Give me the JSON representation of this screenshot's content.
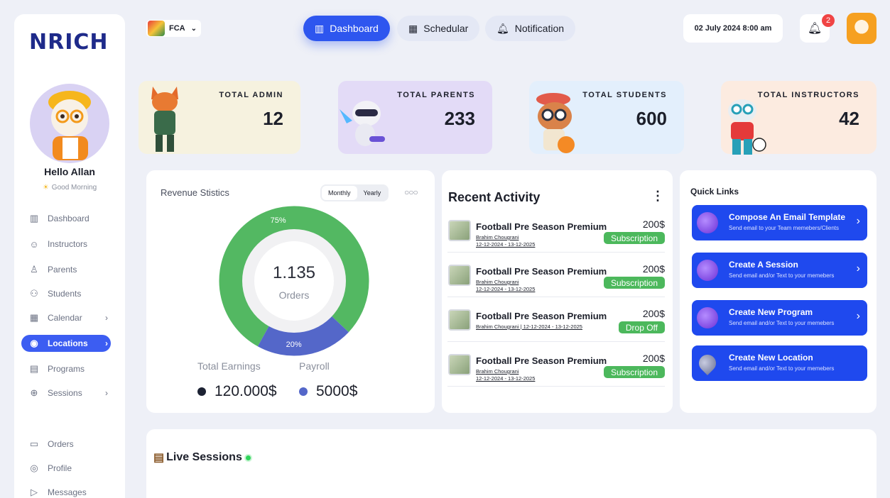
{
  "brand": "NRICH",
  "user": {
    "greeting": "Hello Allan",
    "subtitle": "Good Morning"
  },
  "sidebar": {
    "items": [
      {
        "label": "Dashboard",
        "icon": "chart-icon"
      },
      {
        "label": "Instructors",
        "icon": "user-plus-icon"
      },
      {
        "label": "Parents",
        "icon": "user-icon"
      },
      {
        "label": "Students",
        "icon": "users-icon"
      },
      {
        "label": "Calendar",
        "icon": "calendar-icon"
      },
      {
        "label": "Locations",
        "icon": "location-icon"
      },
      {
        "label": "Programs",
        "icon": "document-icon"
      },
      {
        "label": "Sessions",
        "icon": "globe-icon"
      },
      {
        "label": "Orders",
        "icon": "wallet-icon"
      },
      {
        "label": "Profile",
        "icon": "profile-icon"
      },
      {
        "label": "Messages",
        "icon": "send-icon"
      }
    ]
  },
  "topbar": {
    "org": "FCA",
    "tabs": [
      "Dashboard",
      "Schedular",
      "Notification"
    ],
    "date": "02 July 2024 8:00 am",
    "notifications": "2"
  },
  "stats": [
    {
      "label": "TOTAL ADMIN",
      "value": "12"
    },
    {
      "label": "TOTAL PARENTS",
      "value": "233"
    },
    {
      "label": "TOTAL STUDENTS",
      "value": "600"
    },
    {
      "label": "TOTAL INSTRUCTORS",
      "value": "42"
    }
  ],
  "revenue": {
    "title": "Revenue Stistics",
    "toggle": [
      "Monthly",
      "Yearly"
    ],
    "center_value": "1.135",
    "center_label": "Orders",
    "earnings_label": "Total Earnings",
    "earnings_value": "120.000$",
    "payroll_label": "Payroll",
    "payroll_value": "5000$",
    "colors": {
      "earnings": "#53b862",
      "payroll": "#5467c9"
    }
  },
  "chart_data": {
    "type": "pie",
    "categories": [
      "Total Earnings",
      "Payroll"
    ],
    "values": [
      75,
      20
    ],
    "labels": [
      "75%",
      "20%"
    ]
  },
  "activity": {
    "title": "Recent Activity",
    "rows": [
      {
        "name": "Football Pre Season Premium",
        "line1": "Brahim Chougrani",
        "line2": "12-12-2024 - 13-12-2025",
        "price": "200$",
        "status": "Subscription"
      },
      {
        "name": "Football Pre Season Premium",
        "line1": "Brahim Chougrani",
        "line2": "12-12-2024 - 13-12-2025",
        "price": "200$",
        "status": "Subscription"
      },
      {
        "name": "Football Pre Season Premium",
        "line1": "Brahim Chougrani | 12-12-2024 - 13-12-2025",
        "line2": "",
        "price": "200$",
        "status": "Drop Off"
      },
      {
        "name": "Football Pre Season Premium",
        "line1": "Brahim Chougrani",
        "line2": "12-12-2024 - 13-12-2025",
        "price": "200$",
        "status": "Subscription"
      }
    ]
  },
  "quick_links": {
    "title": "Quick Links",
    "items": [
      {
        "name": "Compose An Email Template",
        "desc": "Send email to your Team memebers/Clients"
      },
      {
        "name": "Create A Session",
        "desc": "Send email and/or Text to your memebers"
      },
      {
        "name": "Create New Program",
        "desc": "Send email and/or Text to your memebers"
      },
      {
        "name": "Create New Location",
        "desc": "Send email and/or Text to your memebers"
      }
    ]
  },
  "live": {
    "title": "Live Sessions"
  }
}
